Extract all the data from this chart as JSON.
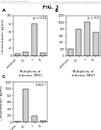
{
  "title": "FIG. 7",
  "header_left": "Human Application Publication",
  "header_right": "Aug. 2, 2012   Sheet 6 of 14    US 2012/0196767 A1",
  "subplots": [
    {
      "label": "A",
      "ylabel": "Concentration (pg/mL)",
      "xlabel": "Multiplicity of\nInfection (MOI)",
      "annotation": "p < 0.01",
      "categories": [
        "uninfected",
        "0.1",
        "1",
        "10"
      ],
      "values": [
        5,
        10,
        80,
        8
      ],
      "ylim": [
        0,
        100
      ],
      "yticks": [
        0,
        20,
        40,
        60,
        80,
        100
      ]
    },
    {
      "label": "B",
      "ylabel": "",
      "xlabel": "Multiplicity of\nInfection (MOI)",
      "annotation": "p < 0.5",
      "categories": [
        "uninfected",
        "0.1",
        "1",
        "10"
      ],
      "values": [
        200,
        800,
        1000,
        700
      ],
      "ylim": [
        0,
        1200
      ],
      "yticks": [
        0,
        200,
        400,
        600,
        800,
        1000,
        1200
      ]
    },
    {
      "label": "C",
      "ylabel": "Concentration (pg/mL)",
      "xlabel": "Multiplicity of\nInfection (MOI)",
      "annotation": "1000 *",
      "categories": [
        "uninfected",
        "0.1",
        "1",
        "10"
      ],
      "values": [
        20,
        1000,
        180,
        60
      ],
      "ylim": [
        0,
        1200
      ],
      "yticks": [
        0,
        200,
        400,
        600,
        800,
        1000,
        1200
      ]
    }
  ],
  "bar_color": "#d0d0d0",
  "bar_edge_color": "#000000",
  "background_color": "#ffffff",
  "title_fontsize": 4.5,
  "label_fontsize": 2.8,
  "tick_fontsize": 2.2,
  "annotation_fontsize": 2.8,
  "header_fontsize": 1.6
}
